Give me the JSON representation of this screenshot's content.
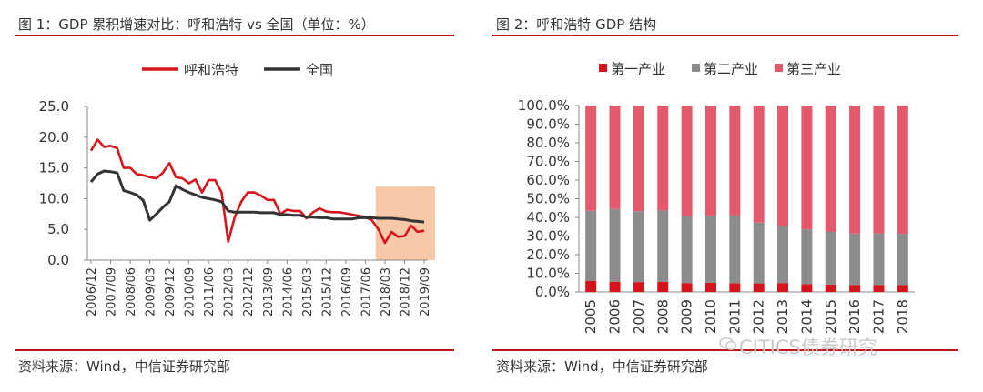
{
  "left": {
    "title": "图 1：GDP 累积增速对比：呼和浩特  vs  全国（单位：%）",
    "source": "资料来源：Wind，中信证券研究部"
  },
  "right": {
    "title": "图 2：呼和浩特 GDP 结构",
    "source": "资料来源：Wind，中信证券研究部"
  },
  "watermark": "CITICS债券研究",
  "colors": {
    "red": "#d7141c",
    "dark": "#333333",
    "grey": "#8c8c8c",
    "pink": "#e25a6b",
    "highlight": "#f7c9a8",
    "rule": "#c0141b"
  },
  "chart_data": [
    {
      "type": "line",
      "title": "",
      "xlabel": "",
      "ylabel": "",
      "ylim": [
        0,
        25
      ],
      "yticks": [
        "0.0",
        "5.0",
        "10.0",
        "15.0",
        "20.0",
        "25.0"
      ],
      "x": [
        "2006/12",
        "2007/03",
        "2007/06",
        "2007/09",
        "2007/12",
        "2008/03",
        "2008/06",
        "2008/09",
        "2008/12",
        "2009/03",
        "2009/06",
        "2009/09",
        "2009/12",
        "2010/03",
        "2010/06",
        "2010/09",
        "2010/12",
        "2011/03",
        "2011/06",
        "2011/09",
        "2011/12",
        "2012/03",
        "2012/06",
        "2012/09",
        "2012/12",
        "2013/03",
        "2013/06",
        "2013/09",
        "2013/12",
        "2014/03",
        "2014/06",
        "2014/09",
        "2014/12",
        "2015/03",
        "2015/06",
        "2015/09",
        "2015/12",
        "2016/03",
        "2016/06",
        "2016/09",
        "2016/12",
        "2017/03",
        "2017/06",
        "2017/09",
        "2017/12",
        "2018/03",
        "2018/06",
        "2018/09",
        "2018/12",
        "2019/03",
        "2019/06",
        "2019/09"
      ],
      "xtick_labels": [
        "2006/12",
        "2007/09",
        "2008/06",
        "2009/03",
        "2009/12",
        "2010/09",
        "2011/06",
        "2012/03",
        "2012/12",
        "2013/09",
        "2014/06",
        "2015/03",
        "2015/12",
        "2016/09",
        "2017/06",
        "2018/03",
        "2018/12",
        "2019/09"
      ],
      "series": [
        {
          "name": "呼和浩特",
          "color": "#d7141c",
          "values": [
            17.8,
            19.6,
            18.4,
            18.6,
            18.2,
            15.0,
            15.0,
            14.0,
            13.8,
            13.5,
            13.3,
            14.2,
            15.8,
            13.5,
            13.3,
            12.5,
            13.1,
            11.0,
            13.0,
            13.0,
            11.0,
            3.0,
            7.0,
            9.5,
            11.0,
            11.0,
            10.5,
            9.8,
            9.8,
            7.5,
            8.2,
            8.0,
            8.0,
            6.8,
            7.8,
            8.4,
            7.9,
            7.8,
            7.8,
            7.6,
            7.4,
            7.2,
            7.0,
            6.5,
            5.0,
            2.8,
            4.6,
            3.8,
            3.9,
            5.6,
            4.6,
            4.8
          ]
        },
        {
          "name": "全国",
          "color": "#333333",
          "values": [
            12.7,
            14.0,
            14.5,
            14.4,
            14.2,
            11.3,
            11.0,
            10.6,
            9.7,
            6.5,
            7.5,
            8.6,
            9.5,
            12.1,
            11.5,
            11.0,
            10.6,
            10.2,
            10.0,
            9.8,
            9.5,
            8.0,
            7.8,
            7.8,
            7.8,
            7.8,
            7.7,
            7.7,
            7.7,
            7.4,
            7.4,
            7.3,
            7.3,
            7.0,
            7.0,
            6.9,
            6.9,
            6.7,
            6.7,
            6.7,
            6.7,
            6.9,
            6.9,
            6.9,
            6.8,
            6.8,
            6.8,
            6.7,
            6.6,
            6.4,
            6.3,
            6.2
          ]
        }
      ],
      "highlight_region": {
        "x_from": "2017/12",
        "x_to": "2019/12",
        "y_from": 0,
        "y_to": 12.0
      },
      "legend_position": "top"
    },
    {
      "type": "bar",
      "stacked": true,
      "title": "",
      "xlabel": "",
      "ylabel": "",
      "ylim": [
        0,
        100
      ],
      "yticks": [
        "0.0%",
        "10.0%",
        "20.0%",
        "30.0%",
        "40.0%",
        "50.0%",
        "60.0%",
        "70.0%",
        "80.0%",
        "90.0%",
        "100.0%"
      ],
      "categories": [
        "2005",
        "2006",
        "2007",
        "2008",
        "2009",
        "2010",
        "2011",
        "2012",
        "2013",
        "2014",
        "2015",
        "2016",
        "2017",
        "2018"
      ],
      "series": [
        {
          "name": "第一产业",
          "color": "#d7141c",
          "values": [
            6.0,
            5.5,
            5.3,
            5.4,
            4.8,
            4.9,
            4.7,
            4.6,
            4.8,
            4.2,
            4.0,
            3.8,
            3.8,
            3.8
          ]
        },
        {
          "name": "第二产业",
          "color": "#8c8c8c",
          "values": [
            37.5,
            39.0,
            38.0,
            38.3,
            35.7,
            36.1,
            36.3,
            32.6,
            30.6,
            29.3,
            28.2,
            27.5,
            27.6,
            27.4
          ]
        },
        {
          "name": "第三产业",
          "color": "#e25a6b",
          "values": [
            56.5,
            55.5,
            56.7,
            56.3,
            59.5,
            59.0,
            59.0,
            62.8,
            64.6,
            66.5,
            67.8,
            68.7,
            68.6,
            68.8
          ]
        }
      ],
      "legend_position": "top"
    }
  ]
}
